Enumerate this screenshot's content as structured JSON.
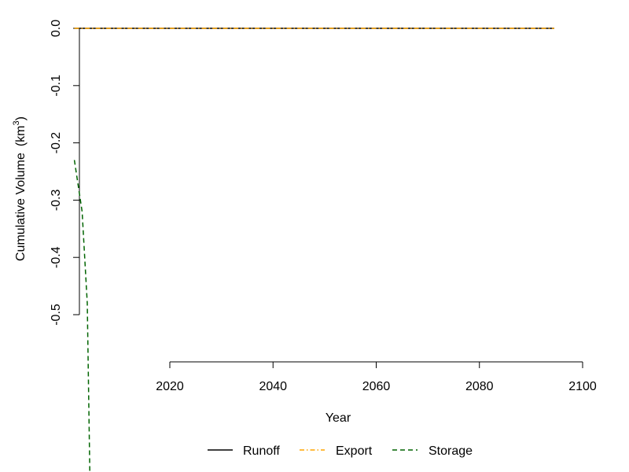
{
  "chart_data": {
    "type": "line",
    "title": "",
    "xlabel": "Year",
    "ylabel": "Cumulative Volume",
    "ylabel_unit": "(km",
    "ylabel_unit_sup": "3",
    "ylabel_unit_close": ")",
    "x_ticks": [
      {
        "value": 2020,
        "label": "2020"
      },
      {
        "value": 2040,
        "label": "2040"
      },
      {
        "value": 2060,
        "label": "2060"
      },
      {
        "value": 2080,
        "label": "2080"
      },
      {
        "value": 2100,
        "label": "2100"
      }
    ],
    "y_ticks": [
      {
        "value": 0.0,
        "label": "0.0"
      },
      {
        "value": -0.1,
        "label": "-0.1"
      },
      {
        "value": -0.2,
        "label": "-0.2"
      },
      {
        "value": -0.3,
        "label": "-0.3"
      },
      {
        "value": -0.4,
        "label": "-0.4"
      },
      {
        "value": -0.5,
        "label": "-0.5"
      }
    ],
    "xlim": [
      2020,
      2100
    ],
    "ylim": [
      -0.5,
      0.0
    ],
    "grid": false,
    "legend_position": "bottom",
    "series": [
      {
        "name": "Runoff",
        "color": "#000000",
        "dash": "solid",
        "x": [
          2001.5,
          2094.5
        ],
        "y": [
          0.0,
          0.0
        ]
      },
      {
        "name": "Export",
        "color": "#FFA500",
        "dash": "dotdash",
        "x": [
          2001.5,
          2094.5
        ],
        "y": [
          0.0,
          0.0
        ]
      },
      {
        "name": "Storage",
        "color": "#006400",
        "dash": "dashed",
        "x": [
          2001.5,
          2003.0,
          2004.0,
          2004.5
        ],
        "y": [
          -0.23,
          -0.32,
          -0.48,
          -0.78
        ]
      }
    ]
  }
}
